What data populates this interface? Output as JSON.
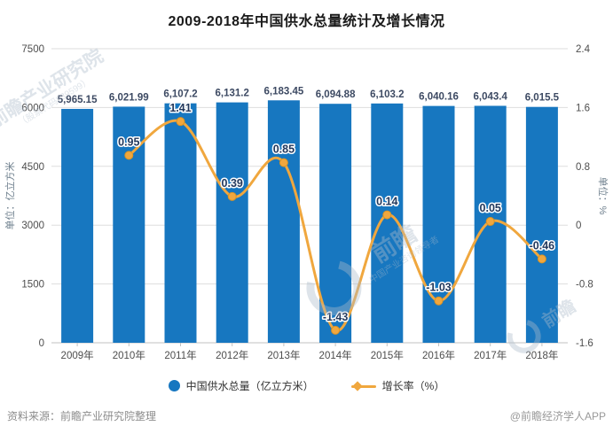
{
  "title": "2009-2018年中国供水总量统计及增长情况",
  "chart_data": {
    "type": "bar+line",
    "categories": [
      "2009年",
      "2010年",
      "2011年",
      "2012年",
      "2013年",
      "2014年",
      "2015年",
      "2016年",
      "2017年",
      "2018年"
    ],
    "series": [
      {
        "name": "中国供水总量（亿立方米）",
        "type": "bar",
        "color": "#1777C0",
        "axis": "left",
        "values": [
          5965.15,
          6021.99,
          6107.2,
          6131.2,
          6183.45,
          6094.88,
          6103.2,
          6040.16,
          6043.4,
          6015.5
        ],
        "labels": [
          "5,965.15",
          "6,021.99",
          "6,107.2",
          "6,131.2",
          "6,183.45",
          "6,094.88",
          "6,103.2",
          "6,040.16",
          "6,043.4",
          "6,015.5"
        ]
      },
      {
        "name": "增长率（%）",
        "type": "line",
        "color": "#F0A73E",
        "marker_edge": "#DB9322",
        "axis": "right",
        "values": [
          null,
          0.95,
          1.41,
          0.39,
          0.85,
          -1.43,
          0.14,
          -1.03,
          0.05,
          -0.46
        ],
        "labels": [
          "",
          "0.95",
          "1.41",
          "0.39",
          "0.85",
          "-1.43",
          "0.14",
          "-1.03",
          "0.05",
          "-0.46"
        ]
      }
    ],
    "left_axis": {
      "label": "单位：亿立方米",
      "min": 0,
      "max": 7500,
      "tick_values": [
        7500,
        6000,
        4500,
        3000,
        1500,
        0
      ],
      "tick_labels": [
        "7500",
        "6000",
        "4500",
        "3000",
        "1500",
        "0"
      ]
    },
    "right_axis": {
      "label": "单位：%",
      "min": -1.6,
      "max": 2.4,
      "tick_values": [
        2.4,
        1.6,
        0.8,
        0,
        -0.8,
        -1.6
      ],
      "tick_labels": [
        "2.4",
        "1.6",
        "0.8",
        "0",
        "-0.8",
        "-1.6"
      ]
    },
    "grid": true,
    "legend_position": "bottom"
  },
  "legend": {
    "items": [
      {
        "label": "中国供水总量（亿立方米）",
        "marker": "circle",
        "color": "#1777C0"
      },
      {
        "label": "增长率（%）",
        "marker": "line-diamond",
        "color": "#F0A73E"
      }
    ]
  },
  "footer": {
    "source": "资料来源：前瞻产业研究院整理",
    "credit": "@前瞻经济学人APP"
  },
  "watermarks": {
    "name": "前瞻产业研究院",
    "code": "（股票代码839599）",
    "brand": "前瞻",
    "tagline": "中国产业咨询领导者"
  },
  "colors": {
    "bar": "#1777C0",
    "line": "#F0A73E",
    "grid": "#dedede",
    "axis": "#c2c2c2",
    "tick_text": "#4d4d4d",
    "bar_label": "#3D4A63",
    "line_label": "#23395d",
    "unit_label": "#6e7f8d"
  }
}
